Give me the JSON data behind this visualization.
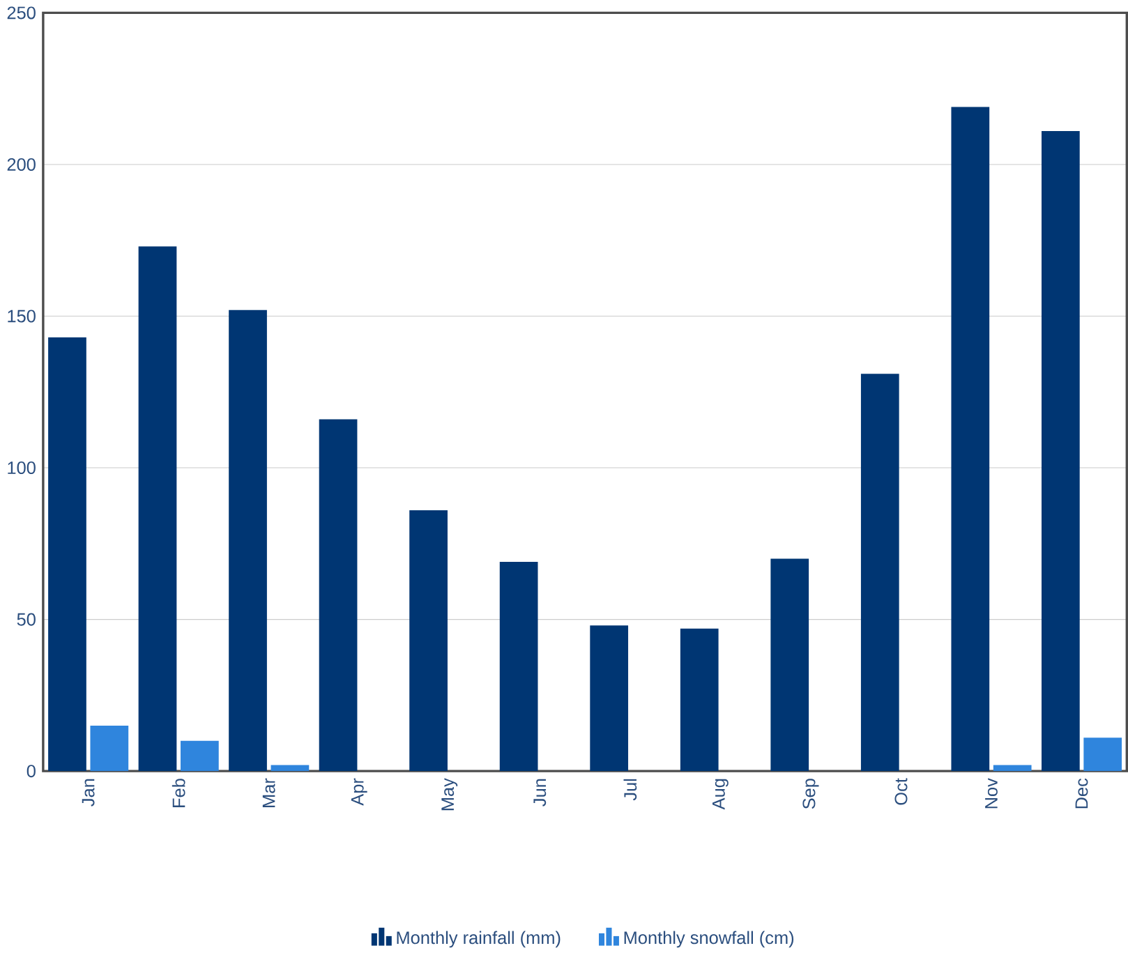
{
  "chart_data": {
    "type": "bar",
    "categories": [
      "Jan",
      "Feb",
      "Mar",
      "Apr",
      "May",
      "Jun",
      "Jul",
      "Aug",
      "Sep",
      "Oct",
      "Nov",
      "Dec"
    ],
    "series": [
      {
        "name": "Monthly rainfall (mm)",
        "color": "#003673",
        "values": [
          143,
          173,
          152,
          116,
          86,
          69,
          48,
          47,
          70,
          131,
          219,
          211
        ]
      },
      {
        "name": "Monthly snowfall (cm)",
        "color": "#2f85dd",
        "values": [
          15,
          10,
          2,
          0,
          0,
          0,
          0,
          0,
          0,
          0,
          2,
          11
        ]
      }
    ],
    "ylim": [
      0,
      250
    ],
    "yticks": [
      0,
      50,
      100,
      150,
      200,
      250
    ],
    "grid": "y",
    "legend": "bottom"
  }
}
